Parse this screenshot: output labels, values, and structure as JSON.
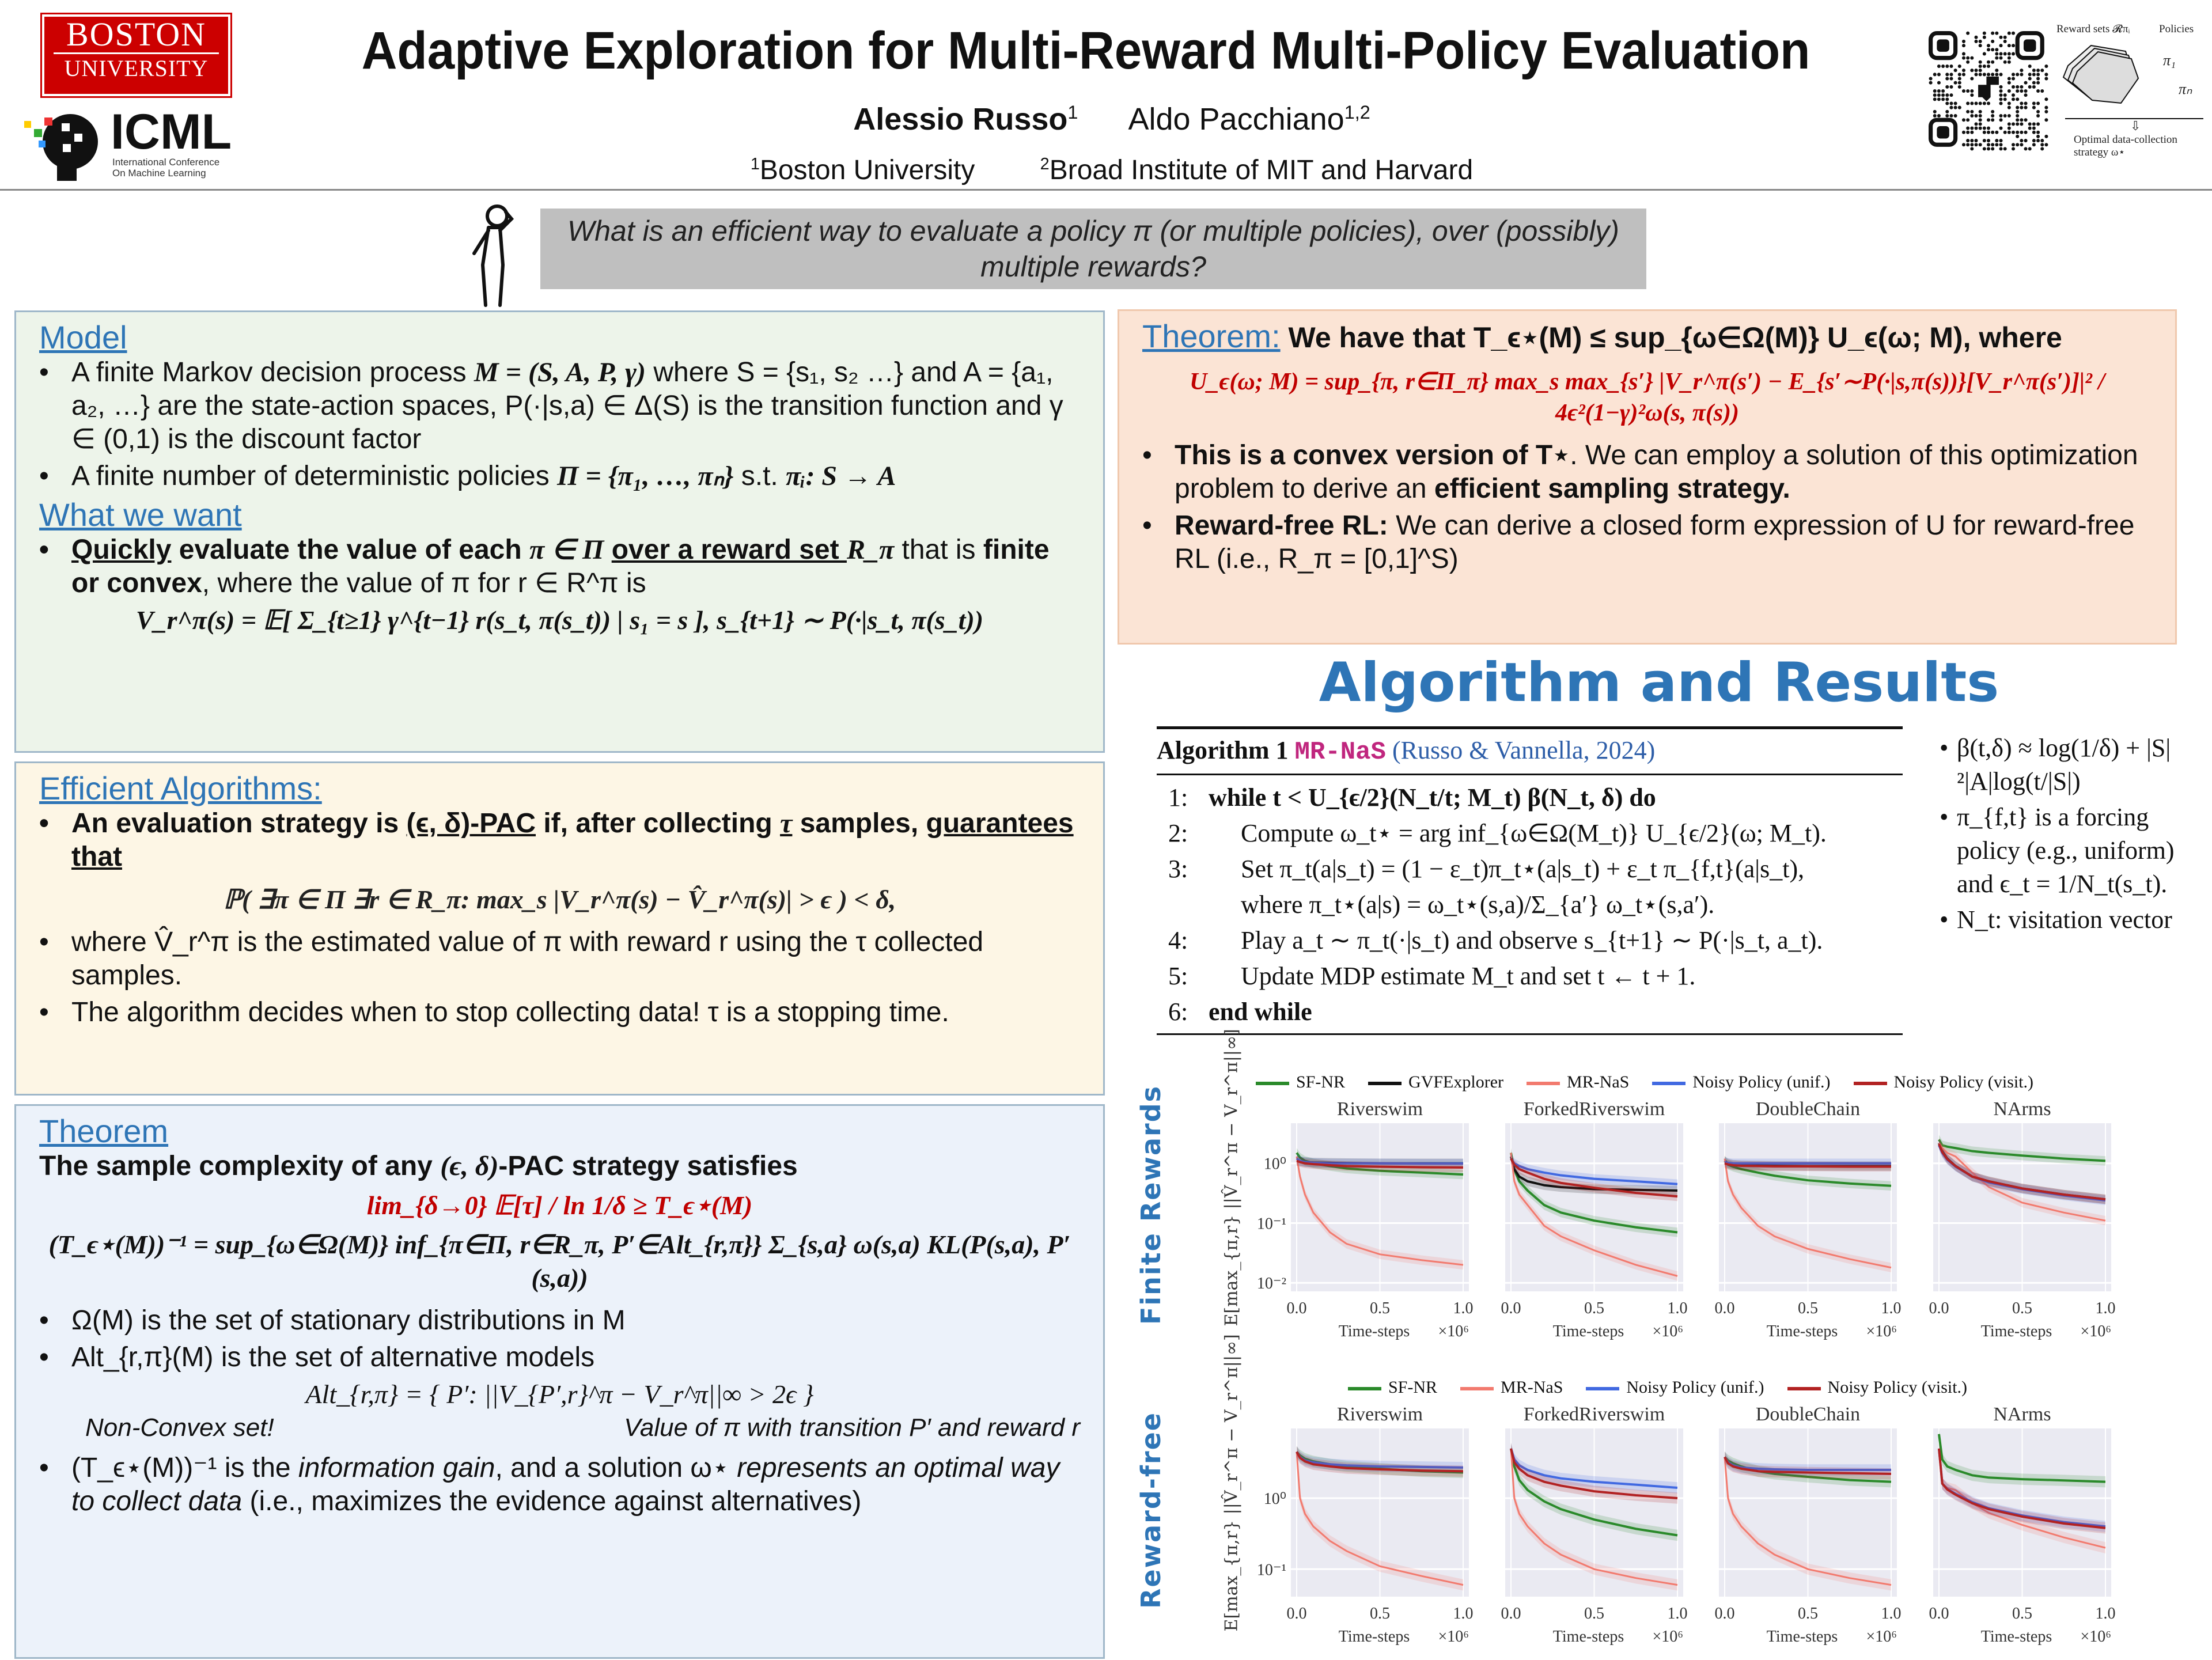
{
  "header": {
    "bu_logo": [
      "BOSTON",
      "UNIVERSITY"
    ],
    "icml_logo": {
      "word": "ICML",
      "sub": [
        "International Conference",
        "On Machine Learning"
      ]
    },
    "title": "Adaptive Exploration for Multi-Reward Multi-Policy Evaluation",
    "authors": [
      {
        "name": "Alessio Russo",
        "sup": "1"
      },
      {
        "name": "Aldo Pacchiano",
        "sup": "1,2"
      }
    ],
    "affiliations": [
      {
        "sup": "1",
        "name": "Boston University"
      },
      {
        "sup": "2",
        "name": "Broad Institute of MIT and Harvard"
      }
    ],
    "diagram": {
      "reward_sets": "Reward sets 𝓡πᵢ",
      "policies": "Policies",
      "pi1": "π₁",
      "pin": "πₙ",
      "caption1": "Optimal data-collection",
      "caption2": "strategy ω⋆"
    }
  },
  "question": "What is an efficient way to evaluate a policy π (or multiple policies), over (possibly) multiple rewards?",
  "model": {
    "heading": "Model",
    "b1": [
      "A finite Markov decision process ",
      "M = (S, A, P, γ)",
      " where S = {s₁, s₂ …} and A = {a₁, a₂, …} are the state-action spaces, P(·|s,a) ∈ Δ(S) is the transition function and γ ∈ (0,1) is the discount factor"
    ],
    "b2": [
      "A finite number of deterministic policies ",
      "Π = {π₁, …, πₙ}",
      " s.t. ",
      "πᵢ: S → A"
    ],
    "want_heading": "What we want",
    "w1": [
      "Quickly",
      " evaluate the value of each ",
      "π ∈ Π",
      "over a reward set ",
      "R_π",
      " that is ",
      "finite or convex",
      ", where the value of π for r ∈ R^π is"
    ],
    "equation": "V_r^π(s) = 𝔼[ Σ_{t≥1} γ^{t−1} r(s_t, π(s_t)) | s₁ = s ],      s_{t+1} ∼ P(·|s_t, π(s_t))"
  },
  "efficient": {
    "heading": "Efficient Algorithms:",
    "b1": [
      "An evaluation strategy is ",
      "(ϵ, δ)-PAC",
      " if, after collecting ",
      "τ",
      " samples, ",
      "guarantees that"
    ],
    "equation": "ℙ( ∃π ∈ Π ∃r ∈ R_π: max_s |V_r^π(s) − V̂_r^π(s)| > ϵ ) < δ,",
    "b2": "where V̂_r^π is the estimated value of π with reward r using the τ   collected samples.",
    "b3": "The algorithm decides when to stop collecting data! τ is a stopping time."
  },
  "theorem": {
    "heading": "Theorem",
    "intro": [
      "The sample complexity of any ",
      "(ϵ, δ)",
      "-PAC strategy satisfies"
    ],
    "eq1": "lim_{δ→0}  𝔼[τ] / ln 1/δ  ≥ T_ϵ⋆(M)",
    "eq2": "(T_ϵ⋆(M))⁻¹ = sup_{ω∈Ω(M)} inf_{π∈Π, r∈R_π, P′∈Alt_{r,π}} Σ_{s,a} ω(s,a) KL(P(s,a), P′(s,a))",
    "b1": "Ω(M) is the set of stationary distributions in M",
    "b2": "Alt_{r,π}(M) is the set of alternative models",
    "eq3": "Alt_{r,π} = { P′:  ||V_{P′,r}^π − V_r^π||∞ > 2ϵ }",
    "note_left": "Non-Convex set!",
    "note_right": "Value of π with transition P′ and reward r",
    "b3": [
      "(T_ϵ⋆(M))⁻¹ is the ",
      "information gain",
      ", and a solution ω⋆ ",
      "represents an optimal way to collect data",
      " (i.e., maximizes the evidence against alternatives)"
    ]
  },
  "right_theorem": {
    "heading": "Theorem:",
    "lead": " We have that T_ϵ⋆(M) ≤ sup_{ω∈Ω(M)} U_ϵ(ω; M), where",
    "eq": "U_ϵ(ω; M) = sup_{π, r∈Π_π} max_s  max_{s′} |V_r^π(s′) − E_{s′∼P(·|s,π(s))}[V_r^π(s′)]|² / 4ϵ²(1−γ)²ω(s, π(s))",
    "b1": [
      "This is a convex version of T⋆",
      ". We can employ a solution of this optimization problem to derive an ",
      "efficient sampling strategy."
    ],
    "b2": [
      "Reward-free RL:",
      " We can derive a closed form expression of U for reward-free RL (i.e., R_π = [0,1]^S)"
    ]
  },
  "results_title": "Algorithm and Results",
  "algorithm": {
    "title_prefix": "Algorithm 1",
    "name": "MR-NaS",
    "citation": "(Russo & Vannella, 2024)",
    "lines": [
      {
        "n": "1:",
        "text": "while t < U_{ϵ/2}(N_t/t; M_t) β(N_t, δ) do",
        "indent": 0
      },
      {
        "n": "2:",
        "text": "Compute ω_t⋆ = arg inf_{ω∈Ω(M_t)} U_{ϵ/2}(ω; M_t).",
        "indent": 1
      },
      {
        "n": "3:",
        "text": "Set π_t(a|s_t) = (1 − ε_t)π_t⋆(a|s_t) + ε_t π_{f,t}(a|s_t),",
        "indent": 1
      },
      {
        "n": "",
        "text": "where π_t⋆(a|s) = ω_t⋆(s,a)/Σ_{a′} ω_t⋆(s,a′).",
        "indent": 1
      },
      {
        "n": "4:",
        "text": "Play a_t ∼ π_t(·|s_t) and observe s_{t+1} ∼ P(·|s_t, a_t).",
        "indent": 1
      },
      {
        "n": "5:",
        "text": "Update MDP estimate M_t and set t ← t + 1.",
        "indent": 1
      },
      {
        "n": "6:",
        "text": "end while",
        "indent": 0
      }
    ],
    "notes": [
      "β(t,δ) ≈ log(1/δ) + |S|²|A|log(t/|S|)",
      "π_{f,t} is a forcing policy (e.g., uniform) and ϵ_t = 1/N_t(s_t).",
      "N_t: visitation vector"
    ]
  },
  "chart_data": [
    {
      "type": "line",
      "row_label": "Finite Rewards",
      "ylabel": "E[max_{π,r} ||V̂_r^π − V_r^π||∞]",
      "xlabel": "Time-steps",
      "x_multiplier": "×10⁶",
      "yscale": "log",
      "ylim": [
        0.0072,
        4.7
      ],
      "yticks": [
        {
          "v": 1,
          "label": "10⁰"
        },
        {
          "v": 0.1,
          "label": "10⁻¹"
        },
        {
          "v": 0.01,
          "label": "10⁻²"
        }
      ],
      "xticks": [
        "0.0",
        "0.5",
        "1.0"
      ],
      "x": [
        0,
        0.02,
        0.05,
        0.1,
        0.2,
        0.3,
        0.5,
        0.75,
        1.0
      ],
      "legend": [
        "SF-NR",
        "GVFExplorer",
        "MR-NaS",
        "Noisy Policy (unif.)",
        "Noisy Policy (visit.)"
      ],
      "colors": {
        "SF-NR": "#2a8a2a",
        "GVFExplorer": "#111111",
        "MR-NaS": "#f27a6e",
        "Noisy Policy (unif.)": "#4169e1",
        "Noisy Policy (visit.)": "#b22222"
      },
      "subplots": [
        {
          "title": "Riverswim",
          "series": [
            {
              "name": "SF-NR",
              "y": [
                1.5,
                1.25,
                1.1,
                1.0,
                0.9,
                0.82,
                0.75,
                0.7,
                0.65
              ]
            },
            {
              "name": "GVFExplorer",
              "y": [
                1.1,
                1.08,
                1.05,
                1.03,
                1.02,
                1.01,
                1.0,
                1.0,
                1.0
              ]
            },
            {
              "name": "MR-NaS",
              "y": [
                1.3,
                0.6,
                0.3,
                0.15,
                0.07,
                0.045,
                0.03,
                0.024,
                0.02
              ]
            },
            {
              "name": "Noisy Policy (unif.)",
              "y": [
                1.2,
                1.1,
                1.05,
                1.02,
                1.0,
                1.0,
                1.0,
                0.99,
                0.99
              ]
            },
            {
              "name": "Noisy Policy (visit.)",
              "y": [
                1.1,
                1.05,
                1.0,
                0.97,
                0.93,
                0.9,
                0.88,
                0.86,
                0.85
              ]
            }
          ]
        },
        {
          "title": "ForkedRiverswim",
          "series": [
            {
              "name": "SF-NR",
              "y": [
                1.5,
                0.8,
                0.5,
                0.35,
                0.2,
                0.15,
                0.11,
                0.085,
                0.07
              ]
            },
            {
              "name": "GVFExplorer",
              "y": [
                1.3,
                0.8,
                0.6,
                0.5,
                0.43,
                0.4,
                0.37,
                0.36,
                0.35
              ]
            },
            {
              "name": "MR-NaS",
              "y": [
                1.5,
                0.5,
                0.3,
                0.2,
                0.09,
                0.06,
                0.035,
                0.02,
                0.013
              ]
            },
            {
              "name": "Noisy Policy (unif.)",
              "y": [
                1.2,
                1.0,
                0.9,
                0.8,
                0.7,
                0.63,
                0.55,
                0.5,
                0.45
              ]
            },
            {
              "name": "Noisy Policy (visit.)",
              "y": [
                1.2,
                0.95,
                0.8,
                0.7,
                0.55,
                0.47,
                0.39,
                0.32,
                0.28
              ]
            }
          ]
        },
        {
          "title": "DoubleChain",
          "series": [
            {
              "name": "SF-NR",
              "y": [
                1.1,
                0.95,
                0.88,
                0.8,
                0.7,
                0.62,
                0.52,
                0.46,
                0.42
              ]
            },
            {
              "name": "GVFExplorer",
              "y": [
                1.1,
                1.0,
                0.95,
                0.93,
                0.92,
                0.91,
                0.9,
                0.9,
                0.9
              ]
            },
            {
              "name": "MR-NaS",
              "y": [
                1.2,
                0.5,
                0.3,
                0.18,
                0.09,
                0.06,
                0.037,
                0.025,
                0.018
              ]
            },
            {
              "name": "Noisy Policy (unif.)",
              "y": [
                1.05,
                1.02,
                1.0,
                1.0,
                1.0,
                1.0,
                1.0,
                1.0,
                1.0
              ]
            },
            {
              "name": "Noisy Policy (visit.)",
              "y": [
                1.0,
                0.96,
                0.93,
                0.91,
                0.9,
                0.89,
                0.89,
                0.88,
                0.88
              ]
            }
          ]
        },
        {
          "title": "NArms",
          "series": [
            {
              "name": "SF-NR",
              "y": [
                2.5,
                2.0,
                1.9,
                1.8,
                1.6,
                1.5,
                1.35,
                1.2,
                1.1
              ]
            },
            {
              "name": "GVFExplorer",
              "y": [
                2.2,
                1.6,
                1.2,
                0.9,
                0.6,
                0.5,
                0.38,
                0.3,
                0.25
              ]
            },
            {
              "name": "MR-NaS",
              "y": [
                2.2,
                1.8,
                1.5,
                1.3,
                0.7,
                0.4,
                0.22,
                0.15,
                0.11
              ]
            },
            {
              "name": "Noisy Policy (unif.)",
              "y": [
                2.0,
                1.5,
                1.15,
                0.88,
                0.6,
                0.48,
                0.37,
                0.29,
                0.24
              ]
            },
            {
              "name": "Noisy Policy (visit.)",
              "y": [
                2.1,
                1.55,
                1.18,
                0.9,
                0.6,
                0.5,
                0.38,
                0.3,
                0.25
              ]
            }
          ]
        }
      ]
    },
    {
      "type": "line",
      "row_label": "Reward-free",
      "ylabel": "E[max_{π,r} ||V̂_r^π − V_r^π||∞]",
      "xlabel": "Time-steps",
      "x_multiplier": "×10⁶",
      "yscale": "log",
      "ylim": [
        0.041,
        9.6
      ],
      "yticks": [
        {
          "v": 1,
          "label": "10⁰"
        },
        {
          "v": 0.1,
          "label": "10⁻¹"
        }
      ],
      "xticks": [
        "0.0",
        "0.5",
        "1.0"
      ],
      "x": [
        0,
        0.02,
        0.05,
        0.1,
        0.2,
        0.3,
        0.5,
        0.75,
        1.0
      ],
      "legend": [
        "SF-NR",
        "MR-NaS",
        "Noisy Policy (unif.)",
        "Noisy Policy (visit.)"
      ],
      "colors": {
        "SF-NR": "#2a8a2a",
        "MR-NaS": "#f27a6e",
        "Noisy Policy (unif.)": "#4169e1",
        "Noisy Policy (visit.)": "#b22222"
      },
      "subplots": [
        {
          "title": "Riverswim",
          "series": [
            {
              "name": "SF-NR",
              "y": [
                4.5,
                4.0,
                3.6,
                3.3,
                3.0,
                2.8,
                2.6,
                2.4,
                2.3
              ]
            },
            {
              "name": "MR-NaS",
              "y": [
                4.5,
                1.0,
                0.6,
                0.4,
                0.25,
                0.18,
                0.11,
                0.08,
                0.06
              ]
            },
            {
              "name": "Noisy Policy (unif.)",
              "y": [
                4.5,
                3.8,
                3.4,
                3.2,
                3.0,
                2.9,
                2.8,
                2.75,
                2.7
              ]
            },
            {
              "name": "Noisy Policy (visit.)",
              "y": [
                4.5,
                3.7,
                3.3,
                3.0,
                2.8,
                2.65,
                2.55,
                2.45,
                2.4
              ]
            }
          ]
        },
        {
          "title": "ForkedRiverswim",
          "series": [
            {
              "name": "SF-NR",
              "y": [
                5.0,
                2.8,
                1.8,
                1.3,
                0.9,
                0.7,
                0.5,
                0.37,
                0.3
              ]
            },
            {
              "name": "MR-NaS",
              "y": [
                5.0,
                1.0,
                0.6,
                0.4,
                0.23,
                0.16,
                0.1,
                0.075,
                0.06
              ]
            },
            {
              "name": "Noisy Policy (unif.)",
              "y": [
                5.0,
                3.5,
                2.9,
                2.5,
                2.1,
                1.9,
                1.7,
                1.55,
                1.4
              ]
            },
            {
              "name": "Noisy Policy (visit.)",
              "y": [
                5.0,
                3.2,
                2.6,
                2.1,
                1.7,
                1.5,
                1.25,
                1.1,
                1.0
              ]
            }
          ]
        },
        {
          "title": "DoubleChain",
          "series": [
            {
              "name": "SF-NR",
              "y": [
                3.8,
                3.4,
                3.1,
                2.8,
                2.4,
                2.2,
                2.0,
                1.8,
                1.7
              ]
            },
            {
              "name": "MR-NaS",
              "y": [
                3.8,
                1.0,
                0.6,
                0.4,
                0.23,
                0.16,
                0.1,
                0.075,
                0.06
              ]
            },
            {
              "name": "Noisy Policy (unif.)",
              "y": [
                3.8,
                3.2,
                2.9,
                2.7,
                2.6,
                2.55,
                2.5,
                2.5,
                2.5
              ]
            },
            {
              "name": "Noisy Policy (visit.)",
              "y": [
                3.8,
                3.1,
                2.8,
                2.6,
                2.4,
                2.35,
                2.3,
                2.25,
                2.2
              ]
            }
          ]
        },
        {
          "title": "NArms",
          "series": [
            {
              "name": "SF-NR",
              "y": [
                8.0,
                3.5,
                2.8,
                2.5,
                2.1,
                1.95,
                1.85,
                1.78,
                1.7
              ]
            },
            {
              "name": "MR-NaS",
              "y": [
                5.0,
                1.6,
                1.4,
                1.3,
                0.85,
                0.62,
                0.42,
                0.28,
                0.2
              ]
            },
            {
              "name": "Noisy Policy (unif.)",
              "y": [
                5.0,
                1.6,
                1.35,
                1.15,
                0.88,
                0.72,
                0.57,
                0.46,
                0.4
              ]
            },
            {
              "name": "Noisy Policy (visit.)",
              "y": [
                5.0,
                1.6,
                1.33,
                1.12,
                0.85,
                0.7,
                0.55,
                0.44,
                0.38
              ]
            }
          ]
        }
      ]
    }
  ]
}
